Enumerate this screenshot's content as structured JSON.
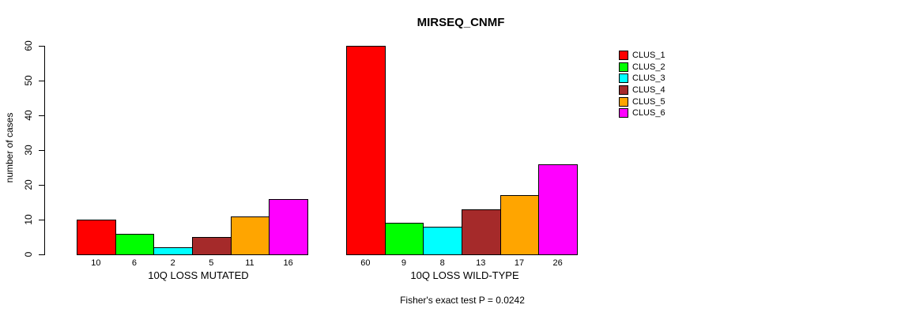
{
  "title": "MIRSEQ_CNMF",
  "y_axis": {
    "label": "number of cases"
  },
  "footer": "Fisher's exact test P = 0.0242",
  "legend": {
    "items": [
      {
        "label": "CLUS_1",
        "color": "#FF0000"
      },
      {
        "label": "CLUS_2",
        "color": "#00FF00"
      },
      {
        "label": "CLUS_3",
        "color": "#00FFFF"
      },
      {
        "label": "CLUS_4",
        "color": "#A52A2A"
      },
      {
        "label": "CLUS_5",
        "color": "#FFA500"
      },
      {
        "label": "CLUS_6",
        "color": "#FF00FF"
      }
    ]
  },
  "chart_data": {
    "type": "bar",
    "title": "MIRSEQ_CNMF",
    "xlabel": "",
    "ylabel": "number of cases",
    "ylim": [
      0,
      60
    ],
    "yticks": [
      0,
      10,
      20,
      30,
      40,
      50,
      60
    ],
    "grid": false,
    "legend_position": "right",
    "categories": [
      "10Q LOSS MUTATED",
      "10Q LOSS WILD-TYPE"
    ],
    "series": [
      {
        "name": "CLUS_1",
        "color": "#FF0000",
        "values": [
          10,
          60
        ]
      },
      {
        "name": "CLUS_2",
        "color": "#00FF00",
        "values": [
          6,
          9
        ]
      },
      {
        "name": "CLUS_3",
        "color": "#00FFFF",
        "values": [
          2,
          8
        ]
      },
      {
        "name": "CLUS_4",
        "color": "#A52A2A",
        "values": [
          5,
          13
        ]
      },
      {
        "name": "CLUS_5",
        "color": "#FFA500",
        "values": [
          11,
          17
        ]
      },
      {
        "name": "CLUS_6",
        "color": "#FF00FF",
        "values": [
          16,
          26
        ]
      }
    ],
    "bar_value_labels": [
      [
        10,
        6,
        2,
        5,
        11,
        16
      ],
      [
        60,
        9,
        8,
        13,
        17,
        26
      ]
    ],
    "annotation": "Fisher's exact test P = 0.0242"
  }
}
